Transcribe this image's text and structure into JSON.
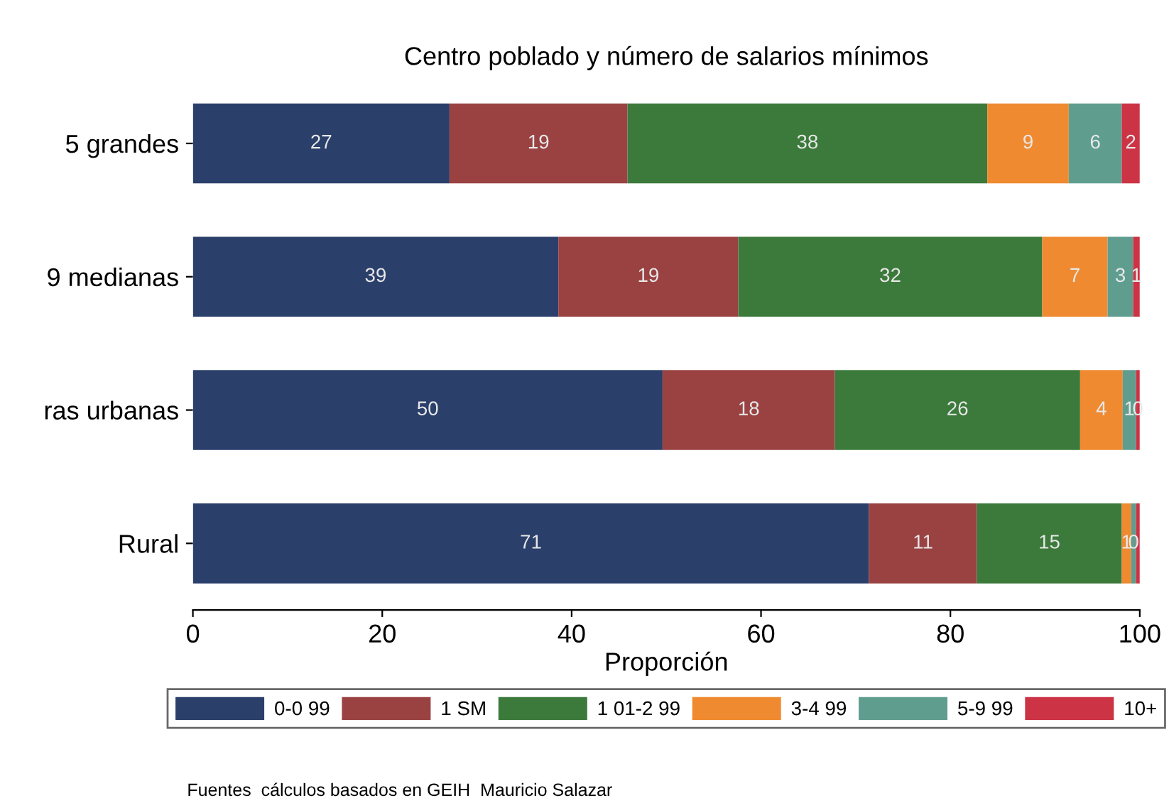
{
  "chart_data": {
    "type": "bar",
    "orientation": "horizontal",
    "stacked": true,
    "title": "Centro poblado y número de salarios mínimos",
    "xlabel": "Proporción",
    "categories": [
      "5 grandes",
      "9 medianas",
      "ras urbanas",
      "Rural"
    ],
    "xlim": [
      0,
      100
    ],
    "xticks": [
      0,
      20,
      40,
      60,
      80,
      100
    ],
    "grid": false,
    "legend": "bottom",
    "series": [
      {
        "name": "0-0 99",
        "color": "#2b3f6b",
        "values": [
          27.1,
          38.6,
          49.6,
          71.4
        ],
        "value_labels": [
          "27",
          "39",
          "50",
          "71"
        ]
      },
      {
        "name": "1 SM",
        "color": "#9a4242",
        "values": [
          18.8,
          19.0,
          18.2,
          11.4
        ],
        "value_labels": [
          "19",
          "19",
          "18",
          "11"
        ]
      },
      {
        "name": "1 01-2 99",
        "color": "#3b7a3b",
        "values": [
          38.0,
          32.1,
          25.9,
          15.3
        ],
        "value_labels": [
          "38",
          "32",
          "26",
          "15"
        ]
      },
      {
        "name": "3-4 99",
        "color": "#f08a30",
        "values": [
          8.6,
          6.9,
          4.5,
          1.0
        ],
        "value_labels": [
          "9",
          "7",
          "4",
          "1"
        ]
      },
      {
        "name": "5-9 99",
        "color": "#5f9e8f",
        "values": [
          5.6,
          2.7,
          1.4,
          0.5
        ],
        "value_labels": [
          "6",
          "3",
          "1",
          "0"
        ]
      },
      {
        "name": "10+",
        "color": "#cc3344",
        "values": [
          1.9,
          0.7,
          0.4,
          0.4
        ],
        "value_labels": [
          "2",
          "1",
          "0",
          null
        ]
      }
    ],
    "annotations": [
      "Fuentes  cálculos basados en GEIH  Mauricio Salazar"
    ]
  }
}
